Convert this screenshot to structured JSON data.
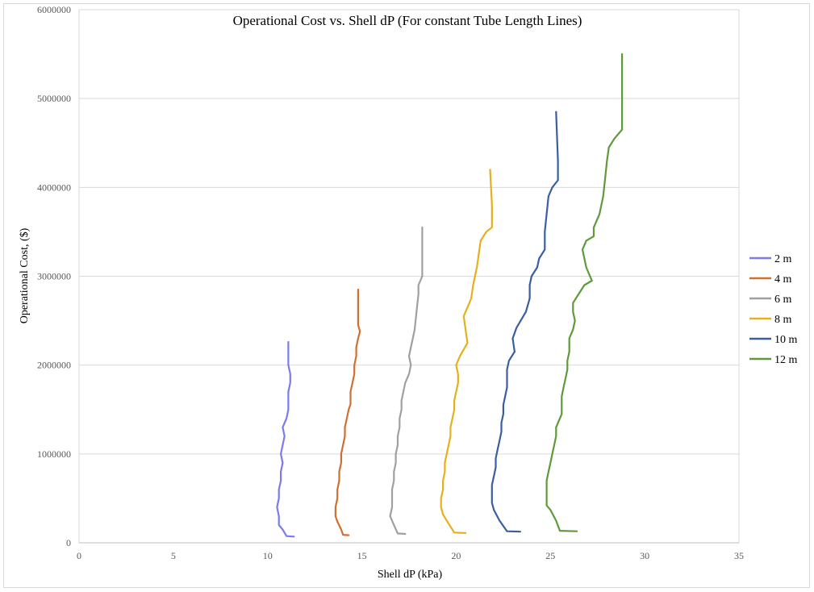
{
  "chart_data": {
    "type": "line",
    "title": "Operational Cost vs. Shell dP (For constant Tube Length Lines)",
    "xlabel": "Shell dP (kPa)",
    "ylabel": "Operational Cost, ($)",
    "xlim": [
      0,
      35
    ],
    "ylim": [
      0,
      6000000
    ],
    "xticks": [
      0,
      5,
      10,
      15,
      20,
      25,
      30,
      35
    ],
    "yticks": [
      0,
      1000000,
      2000000,
      3000000,
      4000000,
      5000000,
      6000000
    ],
    "xtick_labels": [
      "0",
      "5",
      "10",
      "15",
      "20",
      "25",
      "30",
      "35"
    ],
    "ytick_labels": [
      "0",
      "1000000",
      "2000000",
      "3000000",
      "4000000",
      "5000000",
      "6000000"
    ],
    "grid": "horizontal",
    "legend_position": "right",
    "series": [
      {
        "name": "2 m",
        "color": "#7b7bef",
        "points": [
          [
            11.4,
            70000
          ],
          [
            11.0,
            75000
          ],
          [
            10.8,
            150000
          ],
          [
            10.6,
            200000
          ],
          [
            10.6,
            300000
          ],
          [
            10.5,
            400000
          ],
          [
            10.6,
            500000
          ],
          [
            10.6,
            600000
          ],
          [
            10.7,
            700000
          ],
          [
            10.7,
            800000
          ],
          [
            10.8,
            900000
          ],
          [
            10.7,
            1000000
          ],
          [
            10.8,
            1100000
          ],
          [
            10.9,
            1200000
          ],
          [
            10.8,
            1300000
          ],
          [
            11.0,
            1400000
          ],
          [
            11.1,
            1500000
          ],
          [
            11.1,
            1600000
          ],
          [
            11.1,
            1700000
          ],
          [
            11.2,
            1800000
          ],
          [
            11.2,
            1900000
          ],
          [
            11.1,
            2000000
          ],
          [
            11.1,
            2100000
          ],
          [
            11.1,
            2260000
          ]
        ]
      },
      {
        "name": "4 m",
        "color": "#d07030",
        "points": [
          [
            14.3,
            85000
          ],
          [
            14.0,
            90000
          ],
          [
            13.9,
            150000
          ],
          [
            13.7,
            240000
          ],
          [
            13.6,
            300000
          ],
          [
            13.6,
            400000
          ],
          [
            13.7,
            500000
          ],
          [
            13.7,
            600000
          ],
          [
            13.8,
            700000
          ],
          [
            13.8,
            800000
          ],
          [
            13.9,
            900000
          ],
          [
            13.9,
            1000000
          ],
          [
            14.0,
            1100000
          ],
          [
            14.1,
            1200000
          ],
          [
            14.1,
            1300000
          ],
          [
            14.2,
            1400000
          ],
          [
            14.3,
            1500000
          ],
          [
            14.4,
            1560000
          ],
          [
            14.4,
            1700000
          ],
          [
            14.5,
            1800000
          ],
          [
            14.6,
            1900000
          ],
          [
            14.6,
            2000000
          ],
          [
            14.7,
            2100000
          ],
          [
            14.7,
            2200000
          ],
          [
            14.8,
            2300000
          ],
          [
            14.9,
            2380000
          ],
          [
            14.8,
            2450000
          ],
          [
            14.8,
            2600000
          ],
          [
            14.8,
            2850000
          ]
        ]
      },
      {
        "name": "6 m",
        "color": "#a0a0a0",
        "points": [
          [
            17.3,
            100000
          ],
          [
            16.9,
            105000
          ],
          [
            16.7,
            200000
          ],
          [
            16.5,
            300000
          ],
          [
            16.6,
            400000
          ],
          [
            16.6,
            500000
          ],
          [
            16.6,
            600000
          ],
          [
            16.7,
            700000
          ],
          [
            16.7,
            800000
          ],
          [
            16.8,
            900000
          ],
          [
            16.8,
            1000000
          ],
          [
            16.9,
            1100000
          ],
          [
            16.9,
            1200000
          ],
          [
            17.0,
            1300000
          ],
          [
            17.0,
            1400000
          ],
          [
            17.1,
            1500000
          ],
          [
            17.1,
            1600000
          ],
          [
            17.2,
            1700000
          ],
          [
            17.3,
            1800000
          ],
          [
            17.5,
            1900000
          ],
          [
            17.6,
            2000000
          ],
          [
            17.5,
            2100000
          ],
          [
            17.6,
            2200000
          ],
          [
            17.7,
            2300000
          ],
          [
            17.8,
            2400000
          ],
          [
            17.9,
            2600000
          ],
          [
            18.0,
            2800000
          ],
          [
            18.0,
            2900000
          ],
          [
            18.2,
            3000000
          ],
          [
            18.2,
            3200000
          ],
          [
            18.2,
            3550000
          ]
        ]
      },
      {
        "name": "8 m",
        "color": "#e6b01a",
        "points": [
          [
            20.5,
            110000
          ],
          [
            19.9,
            115000
          ],
          [
            19.5,
            250000
          ],
          [
            19.3,
            320000
          ],
          [
            19.2,
            400000
          ],
          [
            19.2,
            500000
          ],
          [
            19.3,
            600000
          ],
          [
            19.3,
            700000
          ],
          [
            19.4,
            800000
          ],
          [
            19.4,
            900000
          ],
          [
            19.5,
            1000000
          ],
          [
            19.6,
            1100000
          ],
          [
            19.7,
            1200000
          ],
          [
            19.7,
            1300000
          ],
          [
            19.8,
            1400000
          ],
          [
            19.9,
            1500000
          ],
          [
            19.9,
            1600000
          ],
          [
            20.0,
            1700000
          ],
          [
            20.1,
            1800000
          ],
          [
            20.1,
            1900000
          ],
          [
            20.0,
            2000000
          ],
          [
            20.2,
            2100000
          ],
          [
            20.6,
            2250000
          ],
          [
            20.5,
            2400000
          ],
          [
            20.4,
            2550000
          ],
          [
            20.6,
            2650000
          ],
          [
            20.8,
            2750000
          ],
          [
            20.9,
            2900000
          ],
          [
            21.1,
            3100000
          ],
          [
            21.3,
            3400000
          ],
          [
            21.6,
            3500000
          ],
          [
            21.9,
            3550000
          ],
          [
            21.9,
            3800000
          ],
          [
            21.8,
            4200000
          ]
        ]
      },
      {
        "name": "10 m",
        "color": "#3a5ea0",
        "points": [
          [
            23.4,
            125000
          ],
          [
            22.7,
            130000
          ],
          [
            22.3,
            250000
          ],
          [
            22.0,
            370000
          ],
          [
            21.9,
            450000
          ],
          [
            21.9,
            550000
          ],
          [
            21.9,
            650000
          ],
          [
            22.0,
            750000
          ],
          [
            22.1,
            850000
          ],
          [
            22.1,
            950000
          ],
          [
            22.2,
            1050000
          ],
          [
            22.3,
            1150000
          ],
          [
            22.4,
            1250000
          ],
          [
            22.4,
            1350000
          ],
          [
            22.5,
            1450000
          ],
          [
            22.5,
            1550000
          ],
          [
            22.6,
            1650000
          ],
          [
            22.7,
            1750000
          ],
          [
            22.7,
            1850000
          ],
          [
            22.7,
            1950000
          ],
          [
            22.8,
            2050000
          ],
          [
            23.1,
            2150000
          ],
          [
            23.0,
            2300000
          ],
          [
            23.2,
            2420000
          ],
          [
            23.7,
            2600000
          ],
          [
            23.9,
            2750000
          ],
          [
            23.9,
            2900000
          ],
          [
            24.0,
            3000000
          ],
          [
            24.3,
            3100000
          ],
          [
            24.4,
            3200000
          ],
          [
            24.7,
            3300000
          ],
          [
            24.7,
            3500000
          ],
          [
            24.8,
            3700000
          ],
          [
            24.9,
            3900000
          ],
          [
            25.1,
            4000000
          ],
          [
            25.4,
            4080000
          ],
          [
            25.4,
            4300000
          ],
          [
            25.3,
            4850000
          ]
        ]
      },
      {
        "name": "12 m",
        "color": "#5e9a3a",
        "points": [
          [
            26.4,
            130000
          ],
          [
            25.5,
            135000
          ],
          [
            25.3,
            250000
          ],
          [
            25.0,
            370000
          ],
          [
            24.8,
            420000
          ],
          [
            24.8,
            550000
          ],
          [
            24.8,
            700000
          ],
          [
            24.9,
            800000
          ],
          [
            25.0,
            900000
          ],
          [
            25.1,
            1000000
          ],
          [
            25.2,
            1100000
          ],
          [
            25.3,
            1200000
          ],
          [
            25.3,
            1300000
          ],
          [
            25.6,
            1450000
          ],
          [
            25.6,
            1550000
          ],
          [
            25.6,
            1650000
          ],
          [
            25.7,
            1750000
          ],
          [
            25.8,
            1850000
          ],
          [
            25.9,
            1950000
          ],
          [
            25.9,
            2050000
          ],
          [
            26.0,
            2150000
          ],
          [
            26.0,
            2300000
          ],
          [
            26.2,
            2400000
          ],
          [
            26.3,
            2500000
          ],
          [
            26.2,
            2600000
          ],
          [
            26.2,
            2700000
          ],
          [
            26.5,
            2800000
          ],
          [
            26.8,
            2900000
          ],
          [
            27.2,
            2950000
          ],
          [
            26.9,
            3100000
          ],
          [
            26.7,
            3300000
          ],
          [
            26.9,
            3400000
          ],
          [
            27.3,
            3450000
          ],
          [
            27.3,
            3550000
          ],
          [
            27.6,
            3700000
          ],
          [
            27.8,
            3900000
          ],
          [
            27.9,
            4100000
          ],
          [
            28.0,
            4300000
          ],
          [
            28.1,
            4450000
          ],
          [
            28.4,
            4550000
          ],
          [
            28.8,
            4650000
          ],
          [
            28.8,
            5000000
          ],
          [
            28.8,
            5500000
          ]
        ]
      }
    ]
  }
}
